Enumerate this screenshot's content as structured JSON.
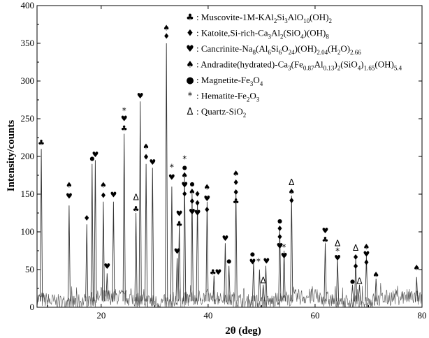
{
  "chart_data": {
    "type": "line",
    "title": "",
    "xlabel": "2θ (deg)",
    "ylabel": "Intensity/counts",
    "xlim": [
      8,
      80
    ],
    "ylim": [
      0,
      400
    ],
    "xticks": [
      20,
      40,
      60,
      80
    ],
    "yticks": [
      0,
      50,
      100,
      150,
      200,
      250,
      300,
      350,
      400
    ],
    "grid": false,
    "legend": {
      "placement": "top-right",
      "entries": [
        {
          "symbol": "♣",
          "prefix": ": Muscovite-1M-",
          "formula": [
            [
              "KAl",
              ""
            ],
            [
              "2",
              "sub"
            ],
            [
              "Si",
              ""
            ],
            [
              "3",
              "sub"
            ],
            [
              "AlO",
              ""
            ],
            [
              "10",
              "sub"
            ],
            [
              "(OH)",
              ""
            ],
            [
              "2",
              "sub"
            ]
          ]
        },
        {
          "symbol": "♦",
          "prefix": ": Katoite,Si-rich-",
          "formula": [
            [
              "Ca",
              ""
            ],
            [
              "3",
              "sub"
            ],
            [
              "Al",
              ""
            ],
            [
              "2",
              "sub"
            ],
            [
              "(SiO",
              ""
            ],
            [
              "4",
              "sub"
            ],
            [
              ")(OH)",
              ""
            ],
            [
              "8",
              "sub"
            ]
          ]
        },
        {
          "symbol": "♥",
          "prefix": ": Cancrinite-",
          "formula": [
            [
              "Na",
              ""
            ],
            [
              "8",
              "sub"
            ],
            [
              "(Al",
              ""
            ],
            [
              "6",
              "sub"
            ],
            [
              "Si",
              ""
            ],
            [
              "6",
              "sub"
            ],
            [
              "O",
              ""
            ],
            [
              "24",
              "sub"
            ],
            [
              ")(OH)",
              ""
            ],
            [
              "2.04",
              "sub"
            ],
            [
              "(H",
              ""
            ],
            [
              "2",
              "sub"
            ],
            [
              "O)",
              ""
            ],
            [
              "2.66",
              "sub"
            ]
          ]
        },
        {
          "symbol": "♠",
          "prefix": ": Andradite(hydrated)-",
          "formula": [
            [
              "Ca",
              ""
            ],
            [
              "3",
              "sub"
            ],
            [
              "(Fe",
              ""
            ],
            [
              "0.87",
              "sub"
            ],
            [
              "Al",
              ""
            ],
            [
              "0.13",
              "sub"
            ],
            [
              ")",
              ""
            ],
            [
              "2",
              "sub"
            ],
            [
              "(SiO",
              ""
            ],
            [
              "4",
              "sub"
            ],
            [
              ")",
              ""
            ],
            [
              "1.65",
              "sub"
            ],
            [
              "(OH)",
              ""
            ],
            [
              "5.4",
              "sub"
            ]
          ]
        },
        {
          "symbol": "●",
          "prefix": ": Magnetite-",
          "formula": [
            [
              "Fe",
              ""
            ],
            [
              "3",
              "sub"
            ],
            [
              "O",
              ""
            ],
            [
              "4",
              "sub"
            ]
          ]
        },
        {
          "symbol": "*",
          "prefix": ": Hematite-",
          "formula": [
            [
              "Fe",
              ""
            ],
            [
              "2",
              "sub"
            ],
            [
              "O",
              ""
            ],
            [
              "3",
              "sub"
            ]
          ]
        },
        {
          "symbol": "Δ",
          "prefix": ": Quartz-",
          "formula": [
            [
              "SiO",
              ""
            ],
            [
              "2",
              "sub"
            ]
          ]
        }
      ]
    },
    "peaks": [
      {
        "x": 8.8,
        "y": 210
      },
      {
        "x": 14.0,
        "y": 135
      },
      {
        "x": 17.3,
        "y": 110
      },
      {
        "x": 18.3,
        "y": 190
      },
      {
        "x": 18.9,
        "y": 195
      },
      {
        "x": 20.4,
        "y": 140
      },
      {
        "x": 21.1,
        "y": 45
      },
      {
        "x": 22.3,
        "y": 140
      },
      {
        "x": 24.3,
        "y": 230
      },
      {
        "x": 26.5,
        "y": 125
      },
      {
        "x": 27.3,
        "y": 273
      },
      {
        "x": 28.4,
        "y": 190
      },
      {
        "x": 29.6,
        "y": 185
      },
      {
        "x": 32.2,
        "y": 350
      },
      {
        "x": 33.2,
        "y": 160
      },
      {
        "x": 34.2,
        "y": 65
      },
      {
        "x": 34.6,
        "y": 110
      },
      {
        "x": 35.6,
        "y": 175
      },
      {
        "x": 37.0,
        "y": 150
      },
      {
        "x": 38.0,
        "y": 140
      },
      {
        "x": 39.8,
        "y": 140
      },
      {
        "x": 41.1,
        "y": 42
      },
      {
        "x": 43.2,
        "y": 85
      },
      {
        "x": 43.9,
        "y": 55
      },
      {
        "x": 45.2,
        "y": 155
      },
      {
        "x": 48.5,
        "y": 60
      },
      {
        "x": 49.6,
        "y": 50
      },
      {
        "x": 50.3,
        "y": 30
      },
      {
        "x": 50.8,
        "y": 55
      },
      {
        "x": 53.4,
        "y": 105
      },
      {
        "x": 54.2,
        "y": 75
      },
      {
        "x": 55.6,
        "y": 148
      },
      {
        "x": 61.9,
        "y": 85
      },
      {
        "x": 64.2,
        "y": 65
      },
      {
        "x": 67.0,
        "y": 30
      },
      {
        "x": 67.6,
        "y": 65
      },
      {
        "x": 68.3,
        "y": 30
      },
      {
        "x": 69.6,
        "y": 68
      },
      {
        "x": 71.4,
        "y": 38
      },
      {
        "x": 79.0,
        "y": 40
      }
    ],
    "annotations": [
      {
        "x": 8.8,
        "y": 214,
        "text": "♣"
      },
      {
        "x": 14.0,
        "y": 158,
        "text": "♠"
      },
      {
        "x": 14.0,
        "y": 143,
        "text": "♥"
      },
      {
        "x": 17.3,
        "y": 114,
        "text": "♦"
      },
      {
        "x": 18.3,
        "y": 194,
        "text": "●"
      },
      {
        "x": 18.9,
        "y": 198,
        "text": "♥"
      },
      {
        "x": 20.4,
        "y": 158,
        "text": "♠"
      },
      {
        "x": 20.4,
        "y": 144,
        "text": "♦"
      },
      {
        "x": 21.1,
        "y": 50,
        "text": "♥"
      },
      {
        "x": 22.3,
        "y": 145,
        "text": "♥"
      },
      {
        "x": 24.3,
        "y": 256,
        "text": "*"
      },
      {
        "x": 24.3,
        "y": 246,
        "text": "♥"
      },
      {
        "x": 24.3,
        "y": 233,
        "text": "♣"
      },
      {
        "x": 26.5,
        "y": 141,
        "text": "Δ"
      },
      {
        "x": 26.5,
        "y": 126,
        "text": "♣"
      },
      {
        "x": 27.3,
        "y": 276,
        "text": "♥"
      },
      {
        "x": 28.4,
        "y": 209,
        "text": "♠"
      },
      {
        "x": 28.4,
        "y": 195,
        "text": "♦"
      },
      {
        "x": 29.6,
        "y": 188,
        "text": "♥"
      },
      {
        "x": 32.2,
        "y": 366,
        "text": "♠"
      },
      {
        "x": 32.2,
        "y": 355,
        "text": "♦"
      },
      {
        "x": 33.2,
        "y": 181,
        "text": "*"
      },
      {
        "x": 33.2,
        "y": 168,
        "text": "♥"
      },
      {
        "x": 34.2,
        "y": 70,
        "text": "♥"
      },
      {
        "x": 34.6,
        "y": 120,
        "text": "♥"
      },
      {
        "x": 34.6,
        "y": 106,
        "text": "♣"
      },
      {
        "x": 35.6,
        "y": 192,
        "text": "*"
      },
      {
        "x": 35.6,
        "y": 182,
        "text": "●"
      },
      {
        "x": 35.6,
        "y": 171,
        "text": "♠"
      },
      {
        "x": 35.6,
        "y": 158,
        "text": "♥"
      },
      {
        "x": 35.6,
        "y": 146,
        "text": "♦"
      },
      {
        "x": 37.0,
        "y": 160,
        "text": "●"
      },
      {
        "x": 37.0,
        "y": 149,
        "text": "♠"
      },
      {
        "x": 37.0,
        "y": 136,
        "text": "♦"
      },
      {
        "x": 37.0,
        "y": 122,
        "text": "♥"
      },
      {
        "x": 38.0,
        "y": 146,
        "text": "♦"
      },
      {
        "x": 38.0,
        "y": 134,
        "text": "♦"
      },
      {
        "x": 38.0,
        "y": 121,
        "text": "♥"
      },
      {
        "x": 39.8,
        "y": 155,
        "text": "♠"
      },
      {
        "x": 39.8,
        "y": 140,
        "text": "♥"
      },
      {
        "x": 39.8,
        "y": 125,
        "text": "♦"
      },
      {
        "x": 40.9,
        "y": 42,
        "text": "♣"
      },
      {
        "x": 41.9,
        "y": 42,
        "text": "♥"
      },
      {
        "x": 43.2,
        "y": 87,
        "text": "♥"
      },
      {
        "x": 43.9,
        "y": 58,
        "text": "●"
      },
      {
        "x": 45.2,
        "y": 173,
        "text": "♠"
      },
      {
        "x": 45.2,
        "y": 161,
        "text": "♦"
      },
      {
        "x": 45.2,
        "y": 148,
        "text": "♦"
      },
      {
        "x": 45.2,
        "y": 136,
        "text": "♣"
      },
      {
        "x": 48.3,
        "y": 67,
        "text": "●"
      },
      {
        "x": 48.3,
        "y": 56,
        "text": "♥"
      },
      {
        "x": 49.4,
        "y": 56,
        "text": "*"
      },
      {
        "x": 50.3,
        "y": 31,
        "text": "Δ"
      },
      {
        "x": 50.9,
        "y": 57,
        "text": "♥"
      },
      {
        "x": 53.4,
        "y": 111,
        "text": "●"
      },
      {
        "x": 53.4,
        "y": 100,
        "text": "♦"
      },
      {
        "x": 53.4,
        "y": 89,
        "text": "♦"
      },
      {
        "x": 53.4,
        "y": 77,
        "text": "♥"
      },
      {
        "x": 54.2,
        "y": 75,
        "text": "*"
      },
      {
        "x": 54.2,
        "y": 64,
        "text": "♥"
      },
      {
        "x": 55.6,
        "y": 161,
        "text": "Δ"
      },
      {
        "x": 55.6,
        "y": 149,
        "text": "♠"
      },
      {
        "x": 55.6,
        "y": 137,
        "text": "♦"
      },
      {
        "x": 61.9,
        "y": 97,
        "text": "♥"
      },
      {
        "x": 61.9,
        "y": 85,
        "text": "♣"
      },
      {
        "x": 64.2,
        "y": 80,
        "text": "Δ"
      },
      {
        "x": 64.2,
        "y": 70,
        "text": "*"
      },
      {
        "x": 64.2,
        "y": 61,
        "text": "♥"
      },
      {
        "x": 67.0,
        "y": 31,
        "text": "●"
      },
      {
        "x": 67.6,
        "y": 74,
        "text": "Δ"
      },
      {
        "x": 67.6,
        "y": 62,
        "text": "♦"
      },
      {
        "x": 67.6,
        "y": 50,
        "text": "♦"
      },
      {
        "x": 68.3,
        "y": 30,
        "text": "Δ"
      },
      {
        "x": 69.6,
        "y": 76,
        "text": "♠"
      },
      {
        "x": 69.6,
        "y": 66,
        "text": "♥"
      },
      {
        "x": 69.6,
        "y": 55,
        "text": "♦"
      },
      {
        "x": 71.4,
        "y": 39,
        "text": "♠"
      },
      {
        "x": 79.0,
        "y": 48,
        "text": "♠"
      }
    ]
  }
}
